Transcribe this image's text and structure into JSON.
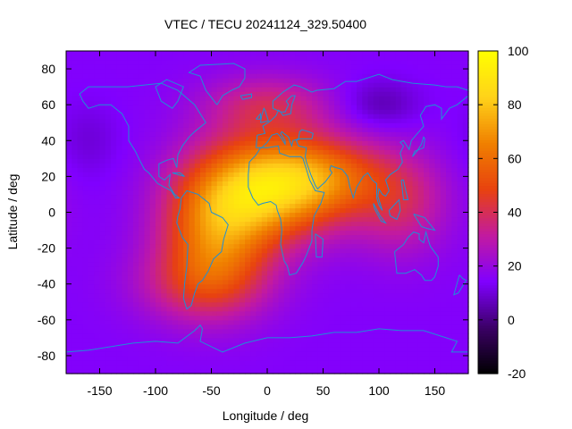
{
  "chart_data": {
    "type": "heatmap",
    "title": "VTEC / TECU 20241124_329.50400",
    "xlabel": "Longitude / deg",
    "ylabel": "Latitude / deg",
    "xlim": [
      -180,
      180
    ],
    "ylim": [
      -90,
      90
    ],
    "x_ticks": [
      -150,
      -100,
      -50,
      0,
      50,
      100,
      150
    ],
    "y_ticks": [
      -80,
      -60,
      -40,
      -20,
      0,
      20,
      40,
      60,
      80
    ],
    "colorbar": {
      "range": [
        -20,
        100
      ],
      "ticks": [
        -20,
        0,
        20,
        40,
        60,
        80,
        100
      ],
      "palette": [
        "#000000",
        "#3b0066",
        "#8000ff",
        "#c21aa0",
        "#e8420f",
        "#f08000",
        "#ffd21a",
        "#ffff00"
      ]
    },
    "overlay": "coastlines",
    "tec_features": [
      {
        "lon": 5,
        "lat": 15,
        "amplitude": 60,
        "sigma_lon": 45,
        "sigma_lat": 20
      },
      {
        "lon": -45,
        "lat": -10,
        "amplitude": 45,
        "sigma_lon": 35,
        "sigma_lat": 25
      },
      {
        "lon": 60,
        "lat": 20,
        "amplitude": 25,
        "sigma_lon": 40,
        "sigma_lat": 15
      },
      {
        "lon": 120,
        "lat": 5,
        "amplitude": 20,
        "sigma_lon": 30,
        "sigma_lat": 20
      },
      {
        "lon": -60,
        "lat": -40,
        "amplitude": 20,
        "sigma_lon": 40,
        "sigma_lat": 15
      },
      {
        "lon": 0,
        "lat": 60,
        "amplitude": 20,
        "sigma_lon": 40,
        "sigma_lat": 12
      },
      {
        "lon": 100,
        "lat": 60,
        "amplitude": -10,
        "sigma_lon": 25,
        "sigma_lat": 10
      },
      {
        "lon": -160,
        "lat": 40,
        "amplitude": -5,
        "sigma_lon": 20,
        "sigma_lat": 15
      }
    ],
    "tec_background": 15
  }
}
